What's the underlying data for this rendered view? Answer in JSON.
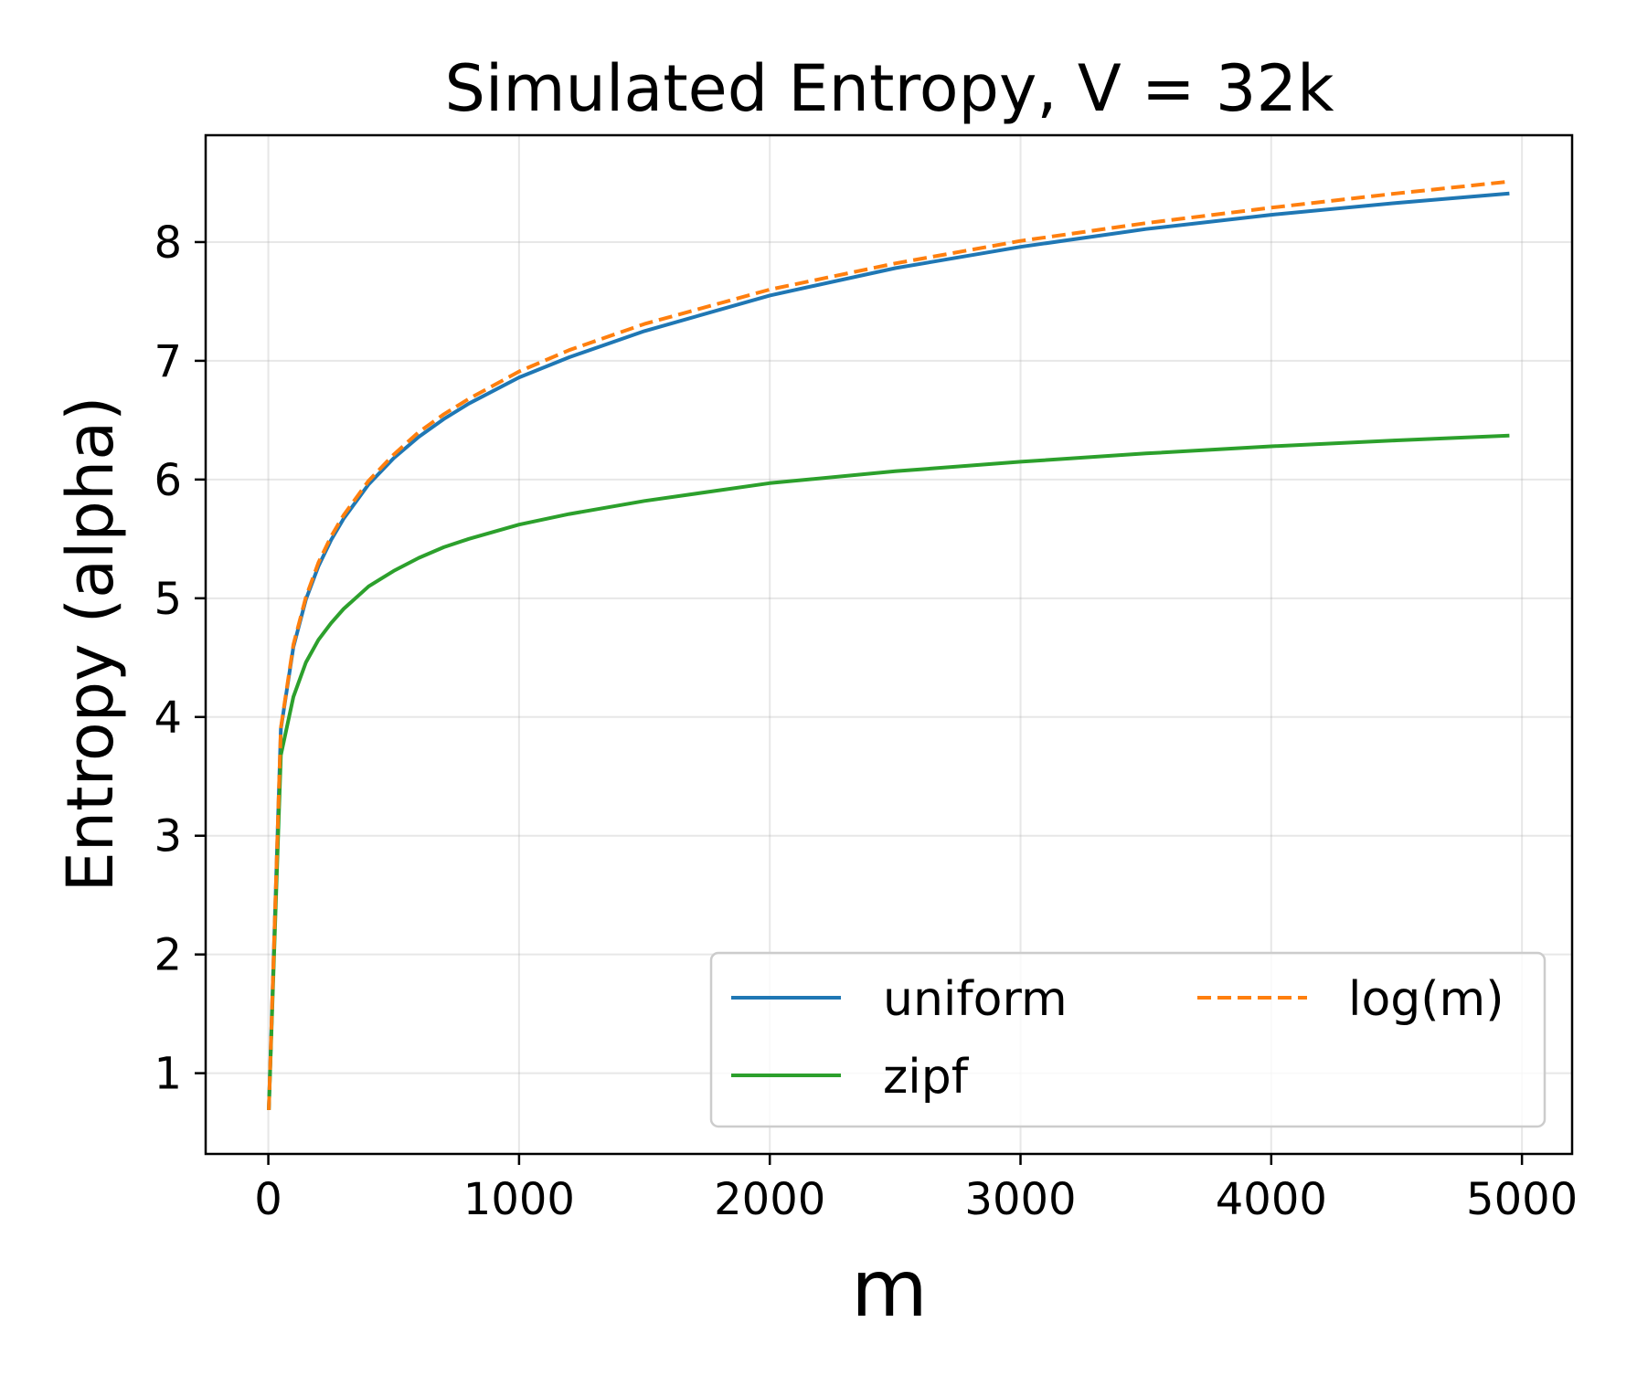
{
  "chart_data": {
    "type": "line",
    "title": "Simulated Entropy, V = 32k",
    "xlabel": "m",
    "ylabel": "Entropy (alpha)",
    "xlim": [
      -250,
      5200
    ],
    "ylim": [
      0.32,
      8.9
    ],
    "xticks": [
      0,
      1000,
      2000,
      3000,
      4000,
      5000
    ],
    "yticks": [
      1,
      2,
      3,
      4,
      5,
      6,
      7,
      8
    ],
    "grid": true,
    "legend_position": "lower-right",
    "legend_columns": 2,
    "x": [
      2,
      50,
      100,
      150,
      200,
      250,
      300,
      400,
      500,
      600,
      700,
      800,
      1000,
      1200,
      1500,
      2000,
      2500,
      3000,
      3500,
      4000,
      4500,
      4950
    ],
    "series": [
      {
        "name": "uniform",
        "color": "#1f77b4",
        "style": "solid",
        "values": [
          0.69,
          3.9,
          4.59,
          4.99,
          5.27,
          5.49,
          5.67,
          5.96,
          6.18,
          6.36,
          6.51,
          6.64,
          6.86,
          7.03,
          7.25,
          7.55,
          7.78,
          7.96,
          8.11,
          8.23,
          8.33,
          8.41
        ]
      },
      {
        "name": "zipf",
        "color": "#2ca02c",
        "style": "solid",
        "values": [
          0.69,
          3.68,
          4.17,
          4.46,
          4.65,
          4.79,
          4.91,
          5.1,
          5.23,
          5.34,
          5.43,
          5.5,
          5.62,
          5.71,
          5.82,
          5.97,
          6.07,
          6.15,
          6.22,
          6.28,
          6.33,
          6.37
        ]
      },
      {
        "name": "log(m)",
        "color": "#ff7f0e",
        "style": "dashed",
        "values": [
          0.69,
          3.91,
          4.61,
          5.01,
          5.3,
          5.52,
          5.7,
          5.99,
          6.21,
          6.4,
          6.55,
          6.68,
          6.91,
          7.09,
          7.31,
          7.6,
          7.82,
          8.01,
          8.16,
          8.29,
          8.41,
          8.51
        ]
      }
    ]
  }
}
